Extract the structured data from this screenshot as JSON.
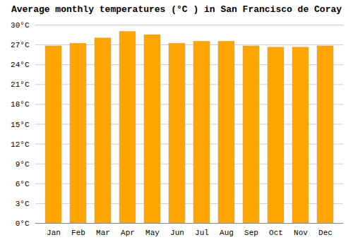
{
  "chart_data": {
    "type": "bar",
    "title": "Average monthly temperatures (°C ) in San Francisco de Coray",
    "categories": [
      "Jan",
      "Feb",
      "Mar",
      "Apr",
      "May",
      "Jun",
      "Jul",
      "Aug",
      "Sep",
      "Oct",
      "Nov",
      "Dec"
    ],
    "values": [
      26.8,
      27.2,
      28.0,
      29.0,
      28.5,
      27.2,
      27.5,
      27.5,
      26.8,
      26.6,
      26.6,
      26.8
    ],
    "color": "#FFA500",
    "ylim": [
      0,
      30
    ],
    "yticks": [
      {
        "value": 0,
        "label": "0°C"
      },
      {
        "value": 3,
        "label": "3°C"
      },
      {
        "value": 6,
        "label": "6°C"
      },
      {
        "value": 9,
        "label": "9°C"
      },
      {
        "value": 12,
        "label": "12°C"
      },
      {
        "value": 15,
        "label": "15°C"
      },
      {
        "value": 18,
        "label": "18°C"
      },
      {
        "value": 21,
        "label": "21°C"
      },
      {
        "value": 24,
        "label": "24°C"
      },
      {
        "value": 27,
        "label": "27°C"
      },
      {
        "value": 30,
        "label": "30°C"
      }
    ],
    "grid": true
  }
}
